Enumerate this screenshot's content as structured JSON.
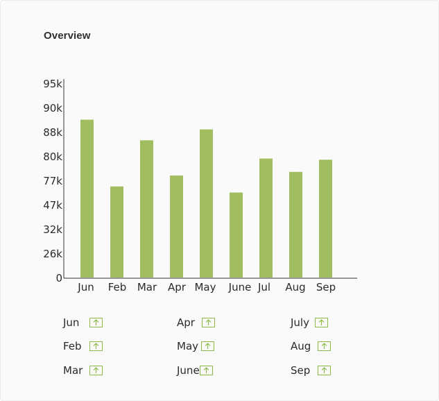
{
  "header": {
    "title": "Overview"
  },
  "colors": {
    "bar": "#a0be5f",
    "axis": "#333333",
    "icon": "#8db84a"
  },
  "chart_data": {
    "type": "bar",
    "categories": [
      "Jun",
      "Feb",
      "Mar",
      "Apr",
      "May",
      "June",
      "Jul",
      "Aug",
      "Sep"
    ],
    "y_ticks": [
      "95k",
      "90k",
      "88k",
      "80k",
      "77k",
      "47k",
      "32k",
      "26k",
      "0"
    ],
    "values_in_tick_steps": [
      6.5,
      3.75,
      5.65,
      4.2,
      6.1,
      3.5,
      4.9,
      4.35,
      4.85
    ],
    "title": "",
    "xlabel": "",
    "ylabel": "",
    "grid": false,
    "legend": "bottom"
  },
  "legend": {
    "items": [
      {
        "label": "Jun",
        "icon": "arrow-up-box-icon"
      },
      {
        "label": "Feb",
        "icon": "arrow-up-box-icon"
      },
      {
        "label": "Mar",
        "icon": "arrow-up-box-icon"
      },
      {
        "label": "Apr",
        "icon": "arrow-up-box-icon"
      },
      {
        "label": "May",
        "icon": "arrow-up-box-icon"
      },
      {
        "label": "June",
        "icon": "arrow-up-box-icon"
      },
      {
        "label": "July",
        "icon": "arrow-up-box-icon"
      },
      {
        "label": "Aug",
        "icon": "arrow-up-box-icon"
      },
      {
        "label": "Sep",
        "icon": "arrow-up-box-icon"
      }
    ]
  }
}
